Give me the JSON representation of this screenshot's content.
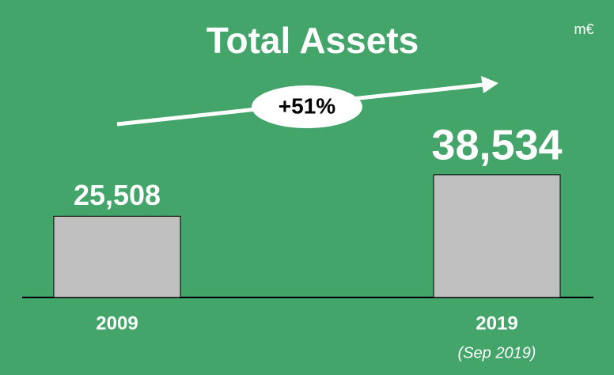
{
  "chart_data": {
    "type": "bar",
    "title": "Total Assets",
    "unit_label": "m€",
    "annotation": "+51%",
    "categories": [
      "2009",
      "2019"
    ],
    "category_notes": [
      null,
      "(Sep 2019)"
    ],
    "values": [
      25508,
      38534
    ],
    "value_labels": [
      "25,508",
      "38,534"
    ],
    "color": "#c0c0c0",
    "background": "#43a569",
    "ylim": [
      0,
      40000
    ]
  }
}
